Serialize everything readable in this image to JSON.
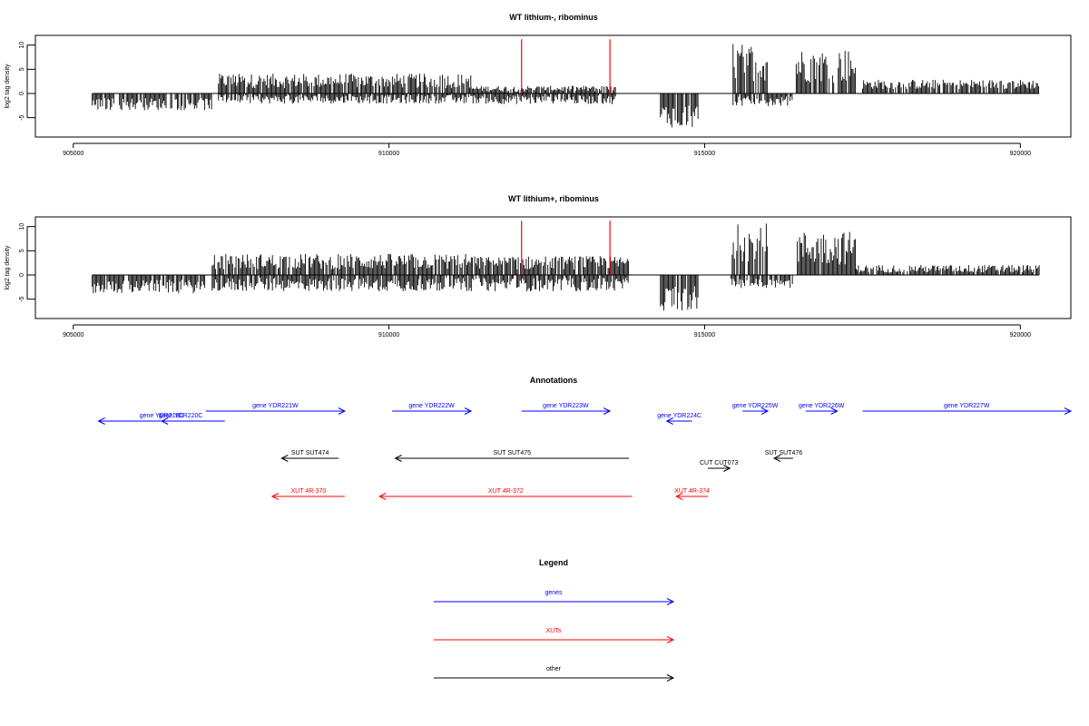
{
  "colors": {
    "genes": "#0000ff",
    "xuts": "#ff0000",
    "other": "#000000",
    "marker": "#ff0000"
  },
  "chart_data": [
    {
      "type": "bar",
      "title": "WT lithium-, ribominus",
      "ylabel": "log2 tag density",
      "xlim": [
        904400,
        920800
      ],
      "ylim": [
        -9,
        12
      ],
      "x_ticks": [
        "905000",
        "910000",
        "915000",
        "920000"
      ],
      "y_ticks": [
        "-5",
        "0",
        "5",
        "10"
      ],
      "markers_x": [
        912100,
        913500
      ],
      "marker_height": 11.2,
      "pos_segments": [
        [
          907300,
          911300,
          2.6,
          1.5
        ],
        [
          911300,
          913600,
          1.0,
          0.6
        ],
        [
          915450,
          916000,
          6.5,
          4.0
        ],
        [
          916450,
          917400,
          5.8,
          3.6
        ],
        [
          917500,
          920300,
          1.9,
          1.0
        ]
      ],
      "neg_segments": [
        [
          905300,
          907200,
          -2.2,
          1.3
        ],
        [
          907300,
          911500,
          -1.2,
          0.9
        ],
        [
          911500,
          913600,
          -1.3,
          0.9
        ],
        [
          914300,
          914900,
          -4.5,
          2.6
        ],
        [
          915450,
          916400,
          -1.6,
          1.0
        ]
      ]
    },
    {
      "type": "bar",
      "title": "WT lithium+, ribominus",
      "ylabel": "log2 tag density",
      "xlim": [
        904400,
        920800
      ],
      "ylim": [
        -9,
        12
      ],
      "x_ticks": [
        "905000",
        "910000",
        "915000",
        "920000"
      ],
      "y_ticks": [
        "-5",
        "0",
        "5",
        "10"
      ],
      "markers_x": [
        912100,
        913500
      ],
      "marker_height": 11.2,
      "pos_segments": [
        [
          907200,
          911400,
          2.8,
          1.6
        ],
        [
          911400,
          913800,
          2.5,
          1.4
        ],
        [
          915400,
          916000,
          6.8,
          4.0
        ],
        [
          916450,
          917400,
          5.6,
          3.5
        ],
        [
          917400,
          920300,
          1.3,
          0.8
        ]
      ],
      "neg_segments": [
        [
          905300,
          907100,
          -2.4,
          1.4
        ],
        [
          907200,
          913800,
          -2.0,
          1.4
        ],
        [
          914300,
          914900,
          -4.8,
          2.6
        ],
        [
          915400,
          916400,
          -1.7,
          1.0
        ]
      ]
    }
  ],
  "annotations": {
    "title": "Annotations",
    "genes": [
      {
        "label": "gene YDR219C",
        "start": 905400,
        "end": 907400,
        "strand": "-",
        "row": 1
      },
      {
        "label": "gene YDR220C",
        "start": 906400,
        "end": 907000,
        "strand": "-",
        "row": 1
      },
      {
        "label": "gene YDR221W",
        "start": 907100,
        "end": 909300,
        "strand": "+",
        "row": 0
      },
      {
        "label": "gene YDR222W",
        "start": 910050,
        "end": 911300,
        "strand": "+",
        "row": 0
      },
      {
        "label": "gene YDR223W",
        "start": 912100,
        "end": 913500,
        "strand": "+",
        "row": 0
      },
      {
        "label": "gene YDR224C",
        "start": 914400,
        "end": 914800,
        "strand": "-",
        "row": 1
      },
      {
        "label": "gene YDR225W",
        "start": 915600,
        "end": 916000,
        "strand": "+",
        "row": 0
      },
      {
        "label": "gene YDR226W",
        "start": 916600,
        "end": 917100,
        "strand": "+",
        "row": 0
      },
      {
        "label": "gene YDR227W",
        "start": 917500,
        "end": 920800,
        "strand": "+",
        "row": 0
      }
    ],
    "other": [
      {
        "label": "SUT SUT474",
        "start": 908300,
        "end": 909200,
        "strand": "-",
        "row": 0
      },
      {
        "label": "SUT SUT475",
        "start": 910100,
        "end": 913800,
        "strand": "-",
        "row": 0
      },
      {
        "label": "SUT SUT476",
        "start": 916100,
        "end": 916400,
        "strand": "-",
        "row": 0
      },
      {
        "label": "CUT CUT073",
        "start": 915050,
        "end": 915400,
        "strand": "+",
        "row": 1
      }
    ],
    "xuts": [
      {
        "label": "XUT 4R-370",
        "start": 908150,
        "end": 909300,
        "strand": "-",
        "row": 0
      },
      {
        "label": "XUT 4R-372",
        "start": 909850,
        "end": 913850,
        "strand": "-",
        "row": 0
      },
      {
        "label": "XUT 4R-374",
        "start": 914550,
        "end": 915050,
        "strand": "-",
        "row": 0
      }
    ]
  },
  "legend": {
    "title": "Legend",
    "items": [
      {
        "label": "genes",
        "color": "#0000ff"
      },
      {
        "label": "XUTs",
        "color": "#ff0000"
      },
      {
        "label": "other",
        "color": "#000000"
      }
    ]
  }
}
